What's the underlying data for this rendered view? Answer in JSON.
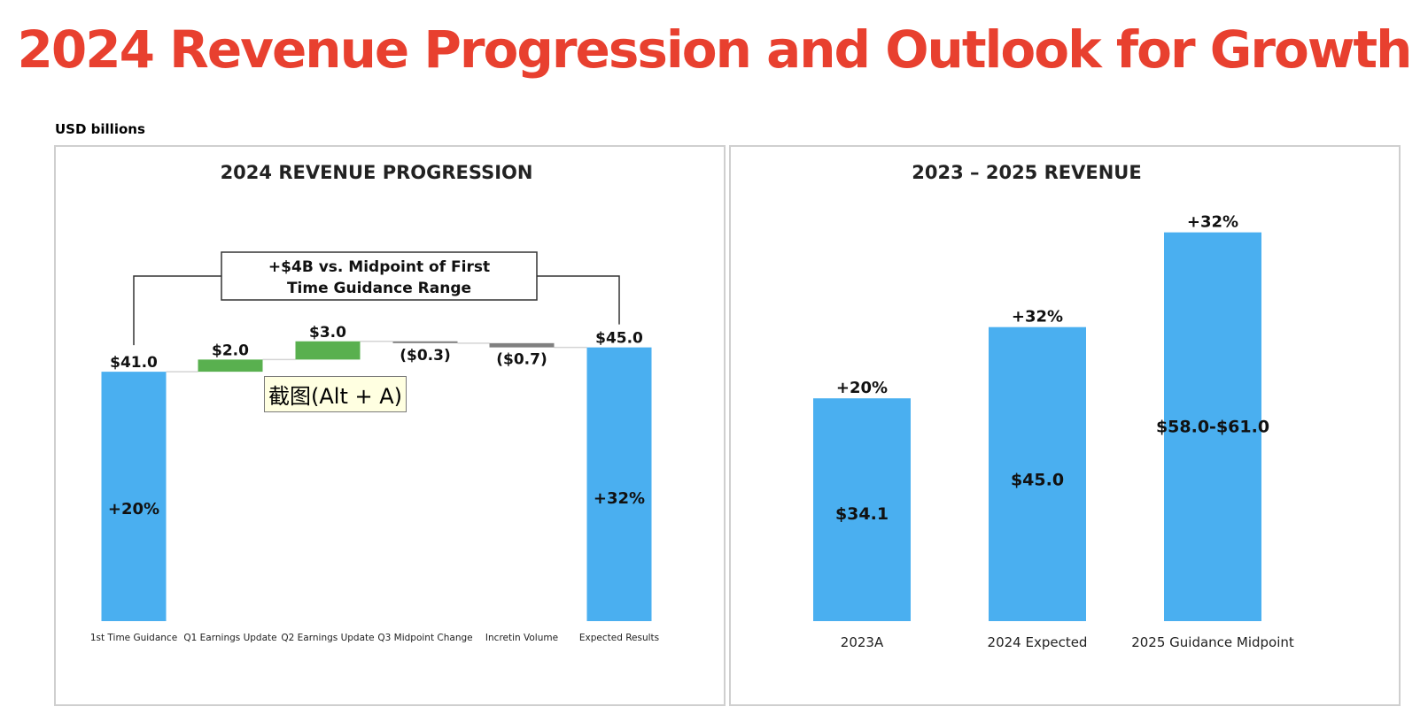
{
  "page": {
    "title": "2024 Revenue Progression and Outlook for Growth",
    "unit_label": "USD billions",
    "title_color": "#e8402f"
  },
  "colors": {
    "total": "#4aaff0",
    "increase": "#59b04f",
    "decrease": "#808080",
    "panel_border": "#cfcfcf"
  },
  "chart_data": [
    {
      "type": "bar",
      "subtype": "waterfall",
      "title": "2024 REVENUE PROGRESSION",
      "categories": [
        "1st Time Guidance",
        "Q1 Earnings Update",
        "Q2 Earnings Update",
        "Q3 Midpoint Change",
        "Incretin Volume",
        "Expected Results"
      ],
      "values": [
        41.0,
        2.0,
        3.0,
        -0.3,
        -0.7,
        45.0
      ],
      "kinds": [
        "total",
        "increase",
        "increase",
        "decrease",
        "decrease",
        "total"
      ],
      "value_labels": [
        "$41.0",
        "$2.0",
        "$3.0",
        "($0.3)",
        "($0.7)",
        "$45.0"
      ],
      "inner_labels": [
        "+20%",
        "",
        "",
        "",
        "",
        "+32%"
      ],
      "annotation": "+$4B vs. Midpoint of First Time Guidance Range",
      "xlabel": "",
      "ylabel": "",
      "ylim": [
        0,
        48
      ],
      "grid": false,
      "legend": "none"
    },
    {
      "type": "bar",
      "title": "2023 – 2025 REVENUE",
      "categories": [
        "2023A",
        "2024 Expected",
        "2025 Guidance Midpoint"
      ],
      "values": [
        34.1,
        45.0,
        59.5
      ],
      "value_labels": [
        "$34.1",
        "$45.0",
        "$58.0-$61.0"
      ],
      "growth_labels": [
        "+20%",
        "+32%",
        "+32%"
      ],
      "xlabel": "",
      "ylabel": "",
      "ylim": [
        0,
        65
      ],
      "grid": false,
      "legend": "none"
    }
  ],
  "overlay": {
    "tooltip_text": "截图(Alt + A)"
  }
}
